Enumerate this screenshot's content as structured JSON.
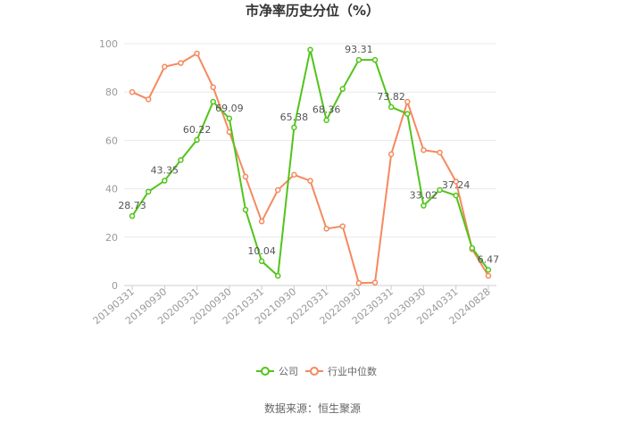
{
  "chart_data": {
    "type": "line",
    "title": "市净率历史分位（%）",
    "ylim": [
      0,
      100
    ],
    "y_ticks": [
      0,
      20,
      40,
      60,
      80,
      100
    ],
    "x_tick_labels": [
      "20190331",
      "20190930",
      "20200331",
      "20200930",
      "20210331",
      "20210930",
      "20220331",
      "20220930",
      "20230331",
      "20230930",
      "20240331",
      "20240828"
    ],
    "grid": "horizontal",
    "legend_position": "bottom",
    "series": [
      {
        "name": "公司",
        "color": "#52c41a",
        "values": [
          28.73,
          38.8,
          43.35,
          51.9,
          60.22,
          76.0,
          69.09,
          31.3,
          10.04,
          4.0,
          65.38,
          97.5,
          68.36,
          81.3,
          93.31,
          93.3,
          73.82,
          71.0,
          33.02,
          39.5,
          37.24,
          15.5,
          6.47
        ],
        "labels": {
          "0": "28.73",
          "2": "43.35",
          "4": "60.22",
          "6": "69.09",
          "8": "10.04",
          "10": "65.38",
          "12": "68.36",
          "14": "93.31",
          "16": "73.82",
          "18": "33.02",
          "20": "37.24",
          "22": "6.47"
        }
      },
      {
        "name": "行业中位数",
        "color": "#f5895f",
        "values": [
          80.0,
          77.0,
          90.5,
          92.0,
          96.0,
          82.0,
          63.5,
          45.0,
          26.5,
          39.5,
          45.8,
          43.3,
          23.5,
          24.5,
          1.0,
          1.2,
          54.3,
          76.0,
          56.0,
          55.0,
          43.0,
          15.0,
          4.0
        ]
      }
    ]
  },
  "legend": {
    "company": "公司",
    "industry": "行业中位数"
  },
  "source": "数据来源：恒生聚源"
}
